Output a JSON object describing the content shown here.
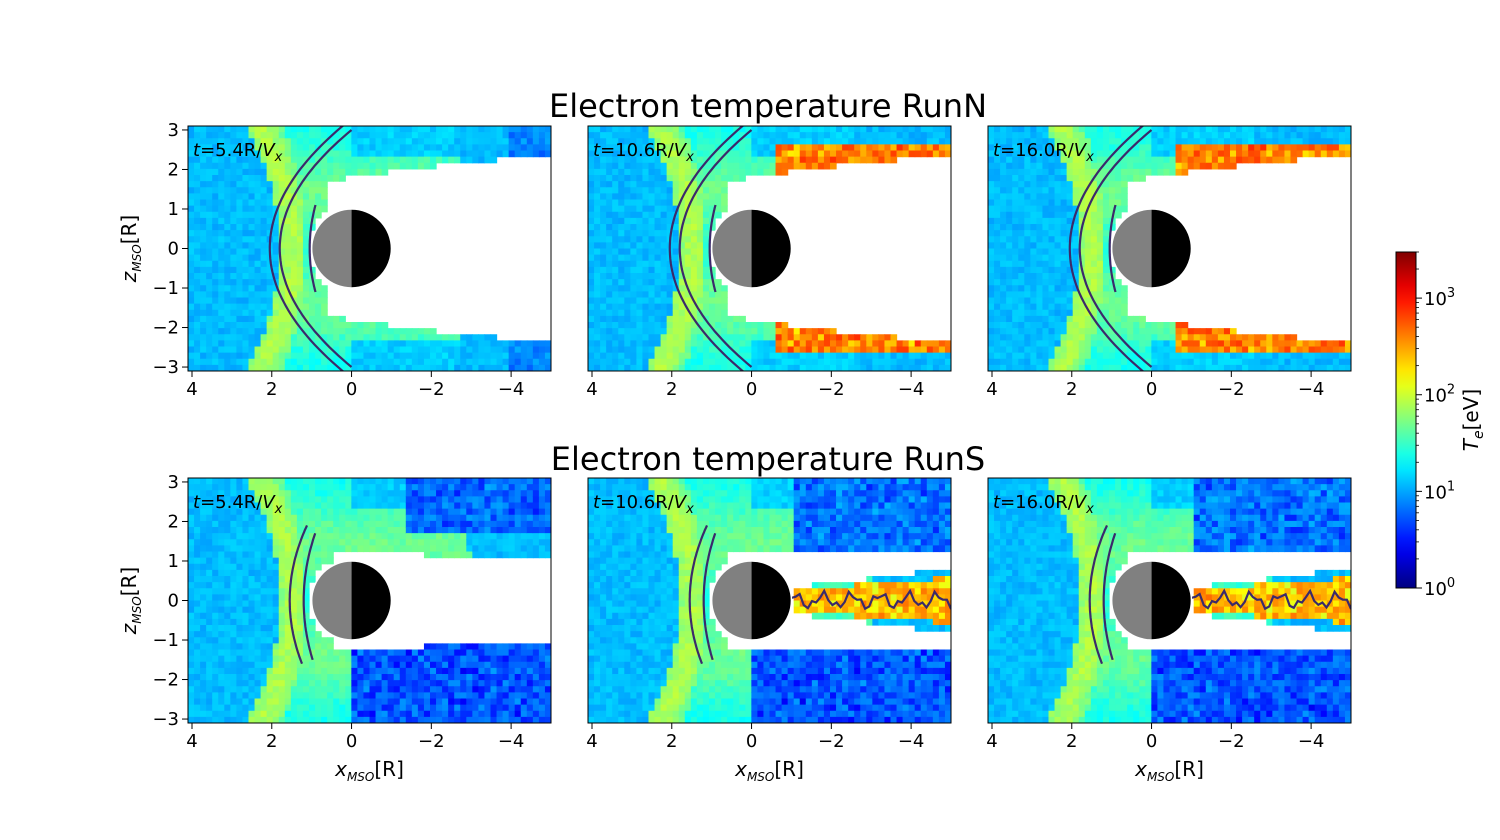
{
  "chart_data": {
    "type": "heatmap",
    "rows": [
      {
        "title": "Electron temperature RunN",
        "run": "RunN",
        "panels": [
          {
            "time": "5.4",
            "tail_cavity": "closed",
            "contours": "bow-shock-double"
          },
          {
            "time": "10.6",
            "tail_cavity": "hot-edged",
            "contours": "bow-shock-double"
          },
          {
            "time": "16.0",
            "tail_cavity": "hot-edged",
            "contours": "bow-shock-double"
          }
        ]
      },
      {
        "title": "Electron temperature RunS",
        "run": "RunS",
        "panels": [
          {
            "time": "5.4",
            "tail_cavity": "closed",
            "contours": "inner-arc"
          },
          {
            "time": "10.6",
            "tail_cavity": "current-sheet",
            "contours": "inner-arc"
          },
          {
            "time": "16.0",
            "tail_cavity": "current-sheet",
            "contours": "inner-arc"
          }
        ]
      }
    ],
    "time_label": {
      "prefix": "t",
      "suffix": "R/V",
      "subscript": "x"
    },
    "xlabel": {
      "symbol": "x",
      "subscript": "MSO",
      "unit": "[R]"
    },
    "ylabel": {
      "symbol": "z",
      "subscript": "MSO",
      "unit": "[R]"
    },
    "xlim": [
      4.1,
      -5
    ],
    "ylim": [
      -3.1,
      3.1
    ],
    "xticks": [
      4,
      2,
      0,
      -2,
      -4
    ],
    "yticks": [
      3,
      2,
      1,
      0,
      -1,
      -2,
      -3
    ],
    "planet_radius": 1,
    "colorbar": {
      "label_symbol": "T",
      "label_subscript": "e",
      "label_unit": "[eV]",
      "scale": "log",
      "range": [
        1,
        3000
      ],
      "ticks": [
        {
          "value": 1,
          "base": "10",
          "exp": "0"
        },
        {
          "value": 10,
          "base": "10",
          "exp": "1"
        },
        {
          "value": 100,
          "base": "10",
          "exp": "2"
        },
        {
          "value": 1000,
          "base": "10",
          "exp": "3"
        }
      ],
      "colormap": "jet"
    },
    "contour_color": "#3b2a6b"
  }
}
